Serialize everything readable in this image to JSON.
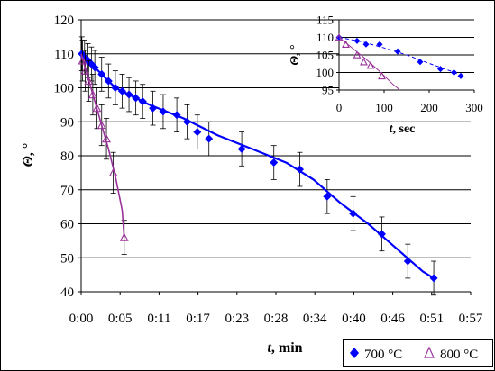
{
  "chart_data": [
    {
      "id": "main",
      "type": "scatter",
      "xlabel_var": "t",
      "xlabel_unit": ", min",
      "ylabel_var": "Θ",
      "ylabel_unit": ", °",
      "x_unit": "minutes",
      "xlim": [
        0,
        57
      ],
      "ylim": [
        40,
        120
      ],
      "x_tick_values": [
        0,
        5.7,
        11.4,
        17.1,
        22.8,
        28.5,
        34.2,
        39.9,
        45.6,
        51.3,
        57
      ],
      "x_tick_labels": [
        "0:00",
        "0:05",
        "0:11",
        "0:17",
        "0:23",
        "0:28",
        "0:34",
        "0:40",
        "0:46",
        "0:51",
        "0:57"
      ],
      "y_ticks": [
        40,
        50,
        60,
        70,
        80,
        90,
        100,
        110,
        120
      ],
      "y_grid": true,
      "series": [
        {
          "name": "700 °C",
          "marker": "diamond",
          "color": "#0000ff",
          "x": [
            0.1,
            0.5,
            1.0,
            1.5,
            2.0,
            3.0,
            4.0,
            5.0,
            6.0,
            7.0,
            8.0,
            9.0,
            10.5,
            12.0,
            14.0,
            15.5,
            17.0,
            18.7,
            23.5,
            28.2,
            32.0,
            36.0,
            39.8,
            44.0,
            47.8,
            51.6
          ],
          "y": [
            110,
            109,
            108,
            107,
            106,
            104,
            102,
            100,
            99,
            98,
            97,
            96,
            94,
            93,
            92,
            90,
            87,
            85,
            82,
            78,
            76,
            68,
            63,
            57,
            49,
            44
          ],
          "error": [
            5,
            5,
            5,
            5,
            5,
            5,
            5,
            5,
            5,
            5,
            5,
            5,
            5,
            5,
            5,
            5,
            5,
            5,
            5,
            5,
            5,
            5,
            5,
            5,
            5,
            5
          ],
          "trend": [
            [
              0,
              110
            ],
            [
              2,
              106
            ],
            [
              5,
              100
            ],
            [
              10,
              95
            ],
            [
              15,
              91
            ],
            [
              20,
              86
            ],
            [
              25,
              82
            ],
            [
              30,
              78
            ],
            [
              34,
              73
            ],
            [
              38,
              66
            ],
            [
              42,
              60
            ],
            [
              46,
              53
            ],
            [
              50,
              46
            ],
            [
              51.6,
              44
            ]
          ]
        },
        {
          "name": "800 °C",
          "marker": "triangle",
          "color": "#993399",
          "x": [
            0.2,
            0.6,
            1.1,
            1.7,
            2.3,
            3.0,
            3.7,
            4.7,
            6.3
          ],
          "y": [
            108,
            105,
            102,
            98,
            94,
            89,
            85,
            75,
            56
          ],
          "error": [
            6,
            6,
            6,
            6,
            6,
            6,
            6,
            6,
            5
          ],
          "trend": [
            [
              0,
              110
            ],
            [
              1,
              103
            ],
            [
              2,
              96
            ],
            [
              3,
              89
            ],
            [
              4,
              82
            ],
            [
              5,
              74
            ],
            [
              6,
              64
            ],
            [
              6.3,
              56
            ]
          ]
        }
      ],
      "legend": {
        "position": "bottom-right",
        "entries": [
          {
            "label": "700 °C",
            "marker": "diamond",
            "color": "#0000ff"
          },
          {
            "label": "800 °C",
            "marker": "triangle",
            "color": "#993399"
          }
        ]
      }
    },
    {
      "id": "inset",
      "type": "scatter",
      "xlabel_var": "t",
      "xlabel_unit": ", sec",
      "ylabel_var": "Θ",
      "ylabel_unit": ", °",
      "xlim": [
        0,
        300
      ],
      "ylim": [
        95,
        115
      ],
      "x_ticks": [
        0,
        100,
        200,
        300
      ],
      "y_ticks": [
        95,
        100,
        105,
        110,
        115
      ],
      "y_grid": true,
      "series": [
        {
          "name": "700 °C",
          "marker": "diamond",
          "color": "#0000ff",
          "x": [
            0,
            40,
            60,
            90,
            130,
            180,
            225,
            255,
            270
          ],
          "y": [
            110,
            109,
            108,
            108,
            106,
            103,
            101,
            100,
            99
          ],
          "trend": [
            [
              0,
              110
            ],
            [
              50,
              108.8
            ],
            [
              100,
              107
            ],
            [
              150,
              105
            ],
            [
              200,
              102.6
            ],
            [
              250,
              100.3
            ],
            [
              280,
              98.6
            ]
          ]
        },
        {
          "name": "800 °C",
          "marker": "triangle",
          "color": "#993399",
          "x": [
            0,
            15,
            40,
            55,
            70,
            95
          ],
          "y": [
            110,
            108,
            105,
            103,
            102,
            99
          ],
          "trend": [
            [
              0,
              110
            ],
            [
              30,
              106.9
            ],
            [
              60,
              103.8
            ],
            [
              90,
              100.3
            ],
            [
              120,
              96.6
            ],
            [
              135,
              95
            ]
          ]
        }
      ]
    }
  ]
}
